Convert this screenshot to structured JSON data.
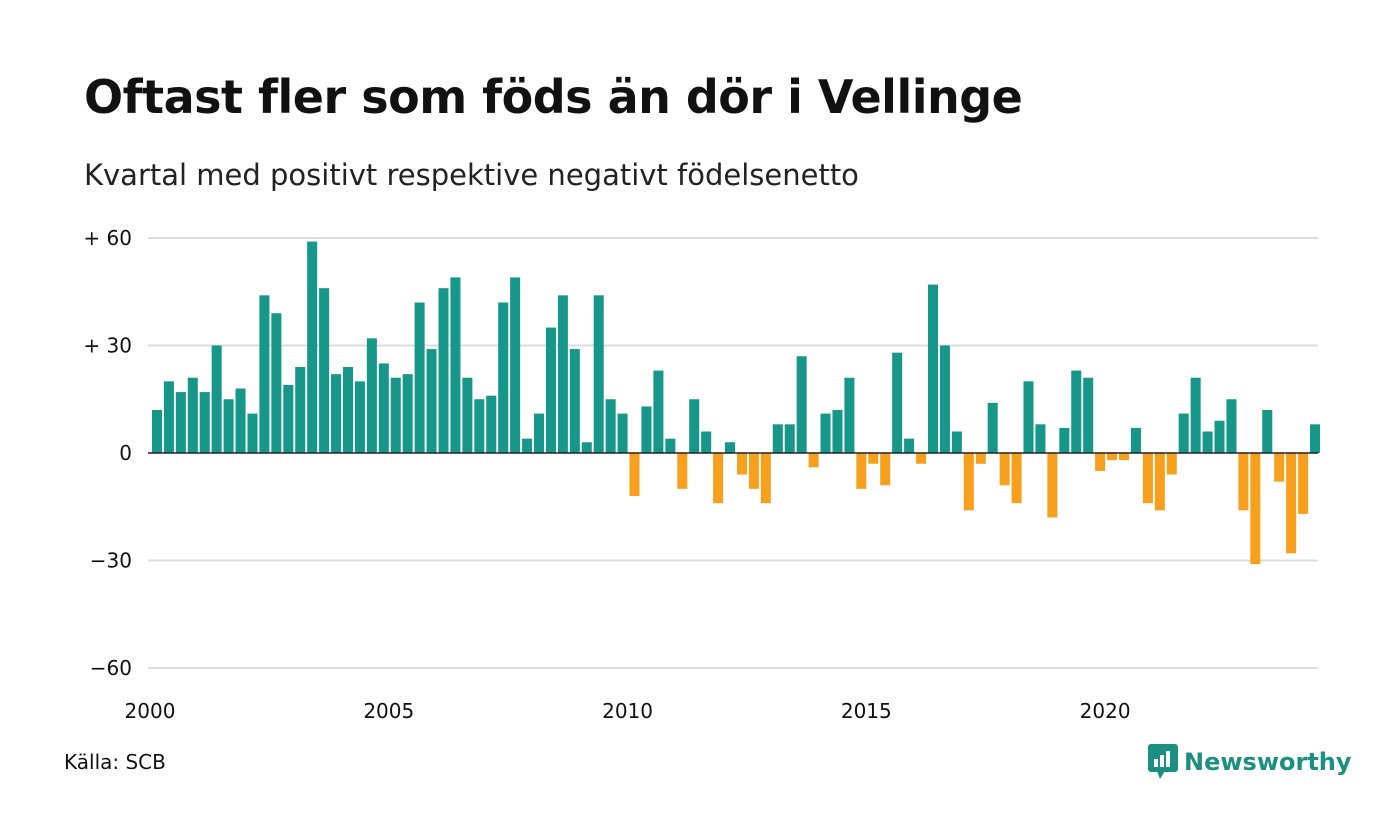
{
  "chart_data": {
    "type": "bar",
    "title": "Oftast fler som föds än dör i Vellinge",
    "subtitle": "Kvartal med positivt respektive negativt födelsenetto",
    "xlabel": "",
    "ylabel": "",
    "x_start": "2000 Q1",
    "x_ticks": [
      "2000",
      "2005",
      "2010",
      "2015",
      "2020"
    ],
    "y_ticks": [
      "−60",
      "−30",
      "0",
      "+ 30",
      "+ 60"
    ],
    "ylim": [
      -60,
      60
    ],
    "grid": true,
    "colors": {
      "positive": "#17968a",
      "negative": "#f6a01d"
    },
    "values": [
      12,
      20,
      17,
      21,
      17,
      30,
      15,
      18,
      11,
      44,
      39,
      19,
      24,
      59,
      46,
      22,
      24,
      20,
      32,
      25,
      21,
      22,
      42,
      29,
      46,
      49,
      21,
      15,
      16,
      42,
      49,
      4,
      11,
      35,
      44,
      29,
      3,
      44,
      15,
      11,
      -12,
      13,
      23,
      4,
      -10,
      15,
      6,
      -14,
      3,
      -6,
      -10,
      -14,
      8,
      8,
      27,
      -4,
      11,
      12,
      21,
      -10,
      -3,
      -9,
      28,
      4,
      -3,
      47,
      30,
      6,
      -16,
      -3,
      14,
      -9,
      -14,
      20,
      8,
      -18,
      7,
      23,
      21,
      -5,
      -2,
      -2,
      7,
      -14,
      -16,
      -6,
      11,
      21,
      6,
      9,
      15,
      -16,
      -31,
      12,
      -8,
      -28,
      -17,
      8
    ]
  },
  "source": "Källa: SCB",
  "brand": {
    "name": "Newsworthy",
    "logo_icon": "newsworthy-logo-icon"
  }
}
